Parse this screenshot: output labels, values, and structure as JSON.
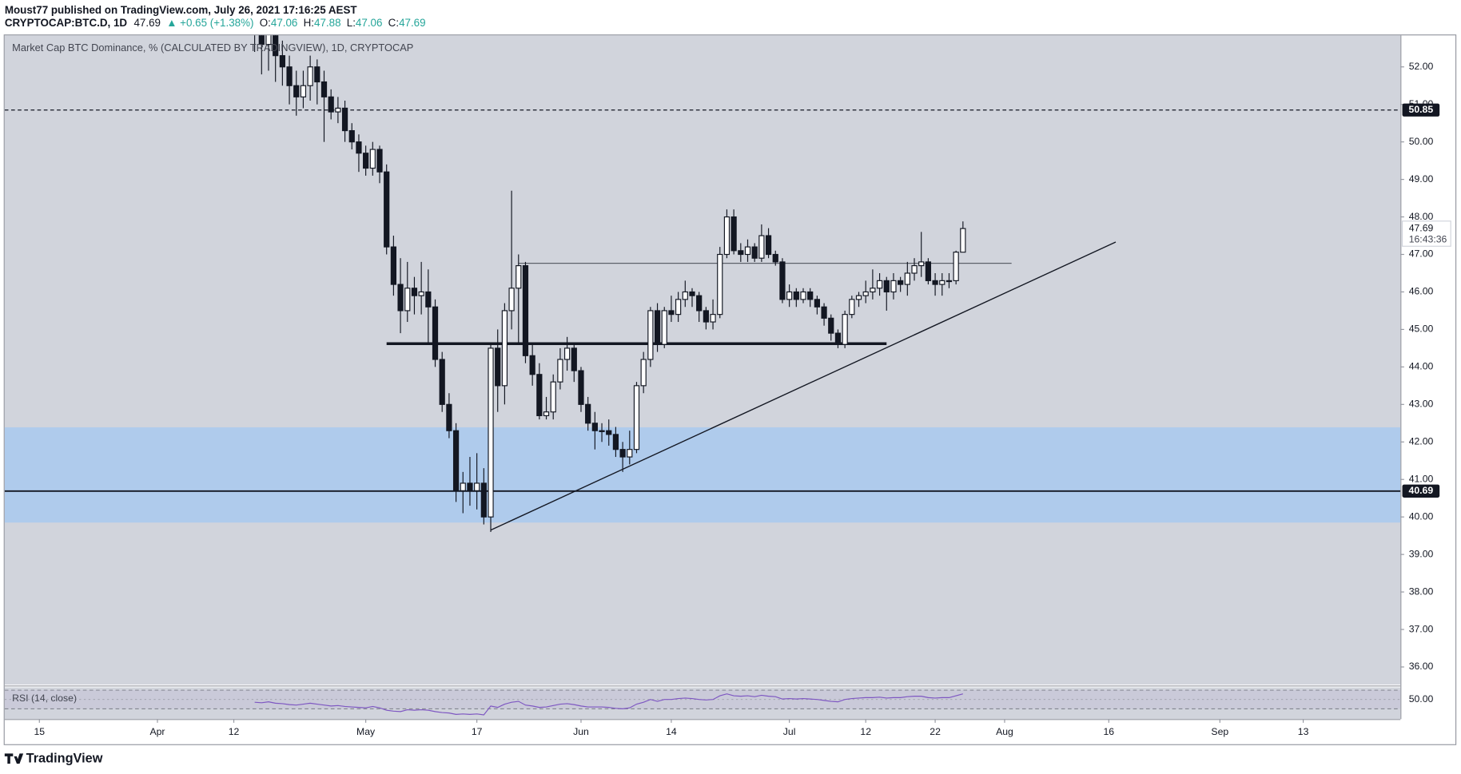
{
  "header": {
    "published": "Moust77 published on TradingView.com, July 26, 2021 17:16:25 AEST",
    "symbol": "CRYPTOCAP:BTC.D, 1D",
    "last": 47.69,
    "change": "▲ +0.65 (+1.38%)",
    "o_label": "O:",
    "o": 47.06,
    "h_label": "H:",
    "h": 47.88,
    "l_label": "L:",
    "l": 47.06,
    "c_label": "C:",
    "c": 47.69
  },
  "chart_data": {
    "type": "candlestick",
    "title": "Market Cap BTC Dominance, % (CALCULATED BY TRADINGVIEW), 1D, CRYPTOCAP",
    "up_color": "#ffffff",
    "down_color": "#131722",
    "background": "#d1d4dc",
    "xlim": [
      "2021-03-10",
      "2021-09-27"
    ],
    "xticks": [
      {
        "value": "2021-03-15",
        "label": "15"
      },
      {
        "value": "2021-04-01",
        "label": "Apr"
      },
      {
        "value": "2021-04-12",
        "label": "12"
      },
      {
        "value": "2021-05-01",
        "label": "May"
      },
      {
        "value": "2021-05-17",
        "label": "17"
      },
      {
        "value": "2021-06-01",
        "label": "Jun"
      },
      {
        "value": "2021-06-14",
        "label": "14"
      },
      {
        "value": "2021-07-01",
        "label": "Jul"
      },
      {
        "value": "2021-07-12",
        "label": "12"
      },
      {
        "value": "2021-07-22",
        "label": "22"
      },
      {
        "value": "2021-08-01",
        "label": "Aug"
      },
      {
        "value": "2021-08-16",
        "label": "16"
      },
      {
        "value": "2021-09-01",
        "label": "Sep"
      },
      {
        "value": "2021-09-13",
        "label": "13"
      }
    ],
    "ylim": [
      35.53,
      52.84
    ],
    "yticks": [
      {
        "value": 36,
        "label": "36.00"
      },
      {
        "value": 37,
        "label": "37.00"
      },
      {
        "value": 38,
        "label": "38.00"
      },
      {
        "value": 39,
        "label": "39.00"
      },
      {
        "value": 40,
        "label": "40.00"
      },
      {
        "value": 41,
        "label": "41.00"
      },
      {
        "value": 42,
        "label": "42.00"
      },
      {
        "value": 43,
        "label": "43.00"
      },
      {
        "value": 44,
        "label": "44.00"
      },
      {
        "value": 45,
        "label": "45.00"
      },
      {
        "value": 46,
        "label": "46.00"
      },
      {
        "value": 47,
        "label": "47.00"
      },
      {
        "value": 48,
        "label": "48.00"
      },
      {
        "value": 49,
        "label": "49.00"
      },
      {
        "value": 50,
        "label": "50.00"
      },
      {
        "value": 51,
        "label": "51.00"
      },
      {
        "value": 52,
        "label": "52.00"
      }
    ],
    "x": [
      "2021-04-15",
      "2021-04-16",
      "2021-04-17",
      "2021-04-18",
      "2021-04-19",
      "2021-04-20",
      "2021-04-21",
      "2021-04-22",
      "2021-04-23",
      "2021-04-24",
      "2021-04-25",
      "2021-04-26",
      "2021-04-27",
      "2021-04-28",
      "2021-04-29",
      "2021-04-30",
      "2021-05-01",
      "2021-05-02",
      "2021-05-03",
      "2021-05-04",
      "2021-05-05",
      "2021-05-06",
      "2021-05-07",
      "2021-05-08",
      "2021-05-09",
      "2021-05-10",
      "2021-05-11",
      "2021-05-12",
      "2021-05-13",
      "2021-05-14",
      "2021-05-15",
      "2021-05-16",
      "2021-05-17",
      "2021-05-18",
      "2021-05-19",
      "2021-05-20",
      "2021-05-21",
      "2021-05-22",
      "2021-05-23",
      "2021-05-24",
      "2021-05-25",
      "2021-05-26",
      "2021-05-27",
      "2021-05-28",
      "2021-05-29",
      "2021-05-30",
      "2021-05-31",
      "2021-06-01",
      "2021-06-02",
      "2021-06-03",
      "2021-06-04",
      "2021-06-05",
      "2021-06-06",
      "2021-06-07",
      "2021-06-08",
      "2021-06-09",
      "2021-06-10",
      "2021-06-11",
      "2021-06-12",
      "2021-06-13",
      "2021-06-14",
      "2021-06-15",
      "2021-06-16",
      "2021-06-17",
      "2021-06-18",
      "2021-06-19",
      "2021-06-20",
      "2021-06-21",
      "2021-06-22",
      "2021-06-23",
      "2021-06-24",
      "2021-06-25",
      "2021-06-26",
      "2021-06-27",
      "2021-06-28",
      "2021-06-29",
      "2021-06-30",
      "2021-07-01",
      "2021-07-02",
      "2021-07-03",
      "2021-07-04",
      "2021-07-05",
      "2021-07-06",
      "2021-07-07",
      "2021-07-08",
      "2021-07-09",
      "2021-07-10",
      "2021-07-11",
      "2021-07-12",
      "2021-07-13",
      "2021-07-14",
      "2021-07-15",
      "2021-07-16",
      "2021-07-17",
      "2021-07-18",
      "2021-07-19",
      "2021-07-20",
      "2021-07-21",
      "2021-07-22",
      "2021-07-23",
      "2021-07-24",
      "2021-07-25",
      "2021-07-26"
    ],
    "candles": [
      [
        53.2,
        53.6,
        52.4,
        52.9
      ],
      [
        52.9,
        53.2,
        51.8,
        52.6
      ],
      [
        52.6,
        53.1,
        51.9,
        52.9
      ],
      [
        52.9,
        53.0,
        51.6,
        52.3
      ],
      [
        52.3,
        52.7,
        51.5,
        52.0
      ],
      [
        52.0,
        52.3,
        51.0,
        51.5
      ],
      [
        51.5,
        51.9,
        50.7,
        51.2
      ],
      [
        51.2,
        51.9,
        50.9,
        51.5
      ],
      [
        51.5,
        52.3,
        51.1,
        52.0
      ],
      [
        52.0,
        52.2,
        51.0,
        51.6
      ],
      [
        51.6,
        51.9,
        50.0,
        51.2
      ],
      [
        51.2,
        51.4,
        50.6,
        50.8
      ],
      [
        50.8,
        51.2,
        50.5,
        50.9
      ],
      [
        50.9,
        51.1,
        50.0,
        50.3
      ],
      [
        50.3,
        50.5,
        49.8,
        50.0
      ],
      [
        50.0,
        50.2,
        49.2,
        49.7
      ],
      [
        49.7,
        49.9,
        49.1,
        49.3
      ],
      [
        49.3,
        50.0,
        49.1,
        49.8
      ],
      [
        49.8,
        49.9,
        48.9,
        49.2
      ],
      [
        49.2,
        49.4,
        47.0,
        47.2
      ],
      [
        47.2,
        47.5,
        45.9,
        46.2
      ],
      [
        46.2,
        46.9,
        44.9,
        45.5
      ],
      [
        45.5,
        46.8,
        45.2,
        46.1
      ],
      [
        46.1,
        46.4,
        45.4,
        45.9
      ],
      [
        45.9,
        46.8,
        45.4,
        46.0
      ],
      [
        46.0,
        46.6,
        44.6,
        45.6
      ],
      [
        45.6,
        45.8,
        44.0,
        44.2
      ],
      [
        44.2,
        44.4,
        42.8,
        43.0
      ],
      [
        43.0,
        43.3,
        42.1,
        42.3
      ],
      [
        42.3,
        42.5,
        40.4,
        40.7
      ],
      [
        40.7,
        41.2,
        40.1,
        40.9
      ],
      [
        40.9,
        41.6,
        40.3,
        40.7
      ],
      [
        40.7,
        41.7,
        40.2,
        40.9
      ],
      [
        40.9,
        41.3,
        39.8,
        40.0
      ],
      [
        40.0,
        44.6,
        39.6,
        44.5
      ],
      [
        44.5,
        45.0,
        42.8,
        43.5
      ],
      [
        43.5,
        45.7,
        43.0,
        45.5
      ],
      [
        45.5,
        48.7,
        45.0,
        46.1
      ],
      [
        46.1,
        47.0,
        44.6,
        46.7
      ],
      [
        46.7,
        46.8,
        44.1,
        44.3
      ],
      [
        44.3,
        44.6,
        43.5,
        43.8
      ],
      [
        43.8,
        44.1,
        42.6,
        42.7
      ],
      [
        42.7,
        43.2,
        42.6,
        42.8
      ],
      [
        42.8,
        43.8,
        42.6,
        43.6
      ],
      [
        43.6,
        44.5,
        43.4,
        44.2
      ],
      [
        44.2,
        44.8,
        43.9,
        44.5
      ],
      [
        44.5,
        44.6,
        43.6,
        43.9
      ],
      [
        43.9,
        44.0,
        42.8,
        43.0
      ],
      [
        43.0,
        43.2,
        42.3,
        42.5
      ],
      [
        42.5,
        42.8,
        41.8,
        42.3
      ],
      [
        42.3,
        42.5,
        42.0,
        42.3
      ],
      [
        42.3,
        42.6,
        41.9,
        42.2
      ],
      [
        42.2,
        42.4,
        41.6,
        41.8
      ],
      [
        41.8,
        42.0,
        41.2,
        41.6
      ],
      [
        41.6,
        42.3,
        41.4,
        41.8
      ],
      [
        41.8,
        43.6,
        41.7,
        43.5
      ],
      [
        43.5,
        44.4,
        43.3,
        44.2
      ],
      [
        44.2,
        45.6,
        44.0,
        45.5
      ],
      [
        45.5,
        45.7,
        44.4,
        44.6
      ],
      [
        44.6,
        45.6,
        44.5,
        45.5
      ],
      [
        45.5,
        45.9,
        45.2,
        45.4
      ],
      [
        45.4,
        46.0,
        45.2,
        45.8
      ],
      [
        45.8,
        46.3,
        45.6,
        46.0
      ],
      [
        46.0,
        46.1,
        45.6,
        45.9
      ],
      [
        45.9,
        46.0,
        45.2,
        45.5
      ],
      [
        45.5,
        45.6,
        45.0,
        45.2
      ],
      [
        45.2,
        45.8,
        45.0,
        45.4
      ],
      [
        45.4,
        47.2,
        45.3,
        47.0
      ],
      [
        47.0,
        48.2,
        46.9,
        48.0
      ],
      [
        48.0,
        48.2,
        47.0,
        47.1
      ],
      [
        47.1,
        47.3,
        46.8,
        47.0
      ],
      [
        47.0,
        47.4,
        46.8,
        47.2
      ],
      [
        47.2,
        47.3,
        46.8,
        46.9
      ],
      [
        46.9,
        47.8,
        46.8,
        47.5
      ],
      [
        47.5,
        47.7,
        46.9,
        47.0
      ],
      [
        47.0,
        47.1,
        46.7,
        46.8
      ],
      [
        46.8,
        46.9,
        45.7,
        45.8
      ],
      [
        45.8,
        46.2,
        45.6,
        46.0
      ],
      [
        46.0,
        46.1,
        45.6,
        45.8
      ],
      [
        45.8,
        46.1,
        45.7,
        46.0
      ],
      [
        46.0,
        46.1,
        45.6,
        45.8
      ],
      [
        45.8,
        45.9,
        45.4,
        45.6
      ],
      [
        45.6,
        45.7,
        45.1,
        45.3
      ],
      [
        45.3,
        45.4,
        44.7,
        44.9
      ],
      [
        44.9,
        45.0,
        44.5,
        44.6
      ],
      [
        44.6,
        45.5,
        44.5,
        45.4
      ],
      [
        45.4,
        45.9,
        45.3,
        45.8
      ],
      [
        45.8,
        46.0,
        45.6,
        45.9
      ],
      [
        45.9,
        46.3,
        45.7,
        46.0
      ],
      [
        46.0,
        46.6,
        45.8,
        46.1
      ],
      [
        46.1,
        46.5,
        45.9,
        46.3
      ],
      [
        46.3,
        46.4,
        45.5,
        46.0
      ],
      [
        46.0,
        46.5,
        45.8,
        46.3
      ],
      [
        46.3,
        46.4,
        46.0,
        46.2
      ],
      [
        46.2,
        46.8,
        45.9,
        46.5
      ],
      [
        46.5,
        46.9,
        46.3,
        46.7
      ],
      [
        46.7,
        47.6,
        46.4,
        46.8
      ],
      [
        46.8,
        46.9,
        46.2,
        46.3
      ],
      [
        46.3,
        46.5,
        45.9,
        46.2
      ],
      [
        46.2,
        46.5,
        45.9,
        46.3
      ],
      [
        46.3,
        46.5,
        46.1,
        46.3
      ],
      [
        46.3,
        47.1,
        46.2,
        47.06
      ],
      [
        47.06,
        47.88,
        47.06,
        47.69
      ]
    ],
    "last_price": 47.69,
    "countdown": "16:43:36",
    "zone": {
      "from": 39.85,
      "to": 42.39,
      "color": "#afcbec"
    },
    "hlines": [
      {
        "value": 50.85,
        "dashed": true
      },
      {
        "value": 40.69,
        "dashed": false
      }
    ],
    "segments": [
      {
        "x": [
          "2021-05-04",
          "2021-07-15"
        ],
        "y": [
          44.62,
          44.62
        ],
        "width": 3
      },
      {
        "x": [
          "2021-05-23",
          "2021-08-02"
        ],
        "y": [
          46.76,
          46.76
        ],
        "width": 0.6
      },
      {
        "x": [
          "2021-05-19",
          "2021-08-17"
        ],
        "y": [
          39.65,
          47.33
        ],
        "width": 1.2
      }
    ],
    "rsi": {
      "label": "RSI (14, close)",
      "color": "#7e57c2",
      "ylim": [
        8,
        76
      ],
      "yticks": [
        {
          "value": 50,
          "label": "50.00"
        }
      ],
      "bands": [
        70,
        30
      ],
      "values": [
        44,
        43,
        45,
        42,
        41,
        39,
        38,
        40,
        42,
        40,
        38,
        36,
        37,
        35,
        34,
        33,
        32,
        35,
        32,
        27,
        25,
        24,
        28,
        27,
        28,
        27,
        24,
        22,
        21,
        18,
        19,
        18,
        19,
        17,
        36,
        33,
        40,
        44,
        46,
        38,
        36,
        33,
        34,
        37,
        40,
        41,
        39,
        36,
        34,
        34,
        34,
        33,
        31,
        30,
        32,
        40,
        44,
        50,
        46,
        50,
        50,
        52,
        53,
        52,
        50,
        49,
        50,
        58,
        62,
        58,
        57,
        58,
        56,
        59,
        57,
        56,
        51,
        52,
        51,
        52,
        51,
        50,
        48,
        46,
        45,
        50,
        52,
        53,
        54,
        54,
        55,
        53,
        54,
        54,
        56,
        57,
        57,
        54,
        53,
        54,
        54,
        58,
        62
      ]
    }
  },
  "footer": {
    "brand": "TradingView"
  }
}
